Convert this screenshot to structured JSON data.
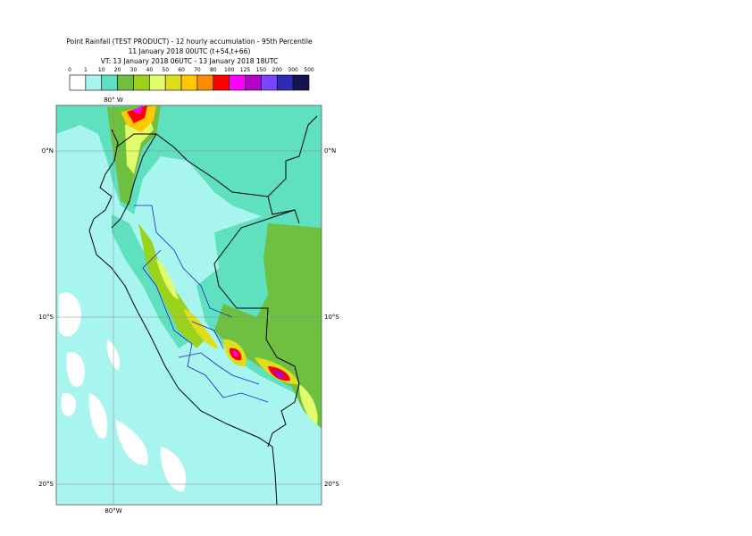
{
  "header": {
    "lines": [
      "Point Rainfall (TEST PRODUCT) - 12 hourly accumulation - 95th Percentile",
      "11 January 2018 00UTC (t+54,t+66)",
      "VT: 13 January 2018 06UTC - 13 January 2018 18UTC"
    ]
  },
  "colorbar": {
    "labels": [
      "0",
      "1",
      "10",
      "20",
      "30",
      "40",
      "50",
      "60",
      "70",
      "80",
      "100",
      "125",
      "150",
      "200",
      "300",
      "500"
    ],
    "colors": [
      "#ffffff",
      "#a8f5f0",
      "#5fe0bf",
      "#6fc040",
      "#9ad21e",
      "#e2fb6a",
      "#dede1e",
      "#ffc800",
      "#ff8c00",
      "#ff0000",
      "#ff00ff",
      "#b400c8",
      "#7846ff",
      "#2d2db4",
      "#141450"
    ]
  },
  "map": {
    "lon_label_top": "80° W",
    "lon_label_bottom": "80°W",
    "lat_labels": [
      "0°N",
      "10°S",
      "20°S"
    ]
  }
}
